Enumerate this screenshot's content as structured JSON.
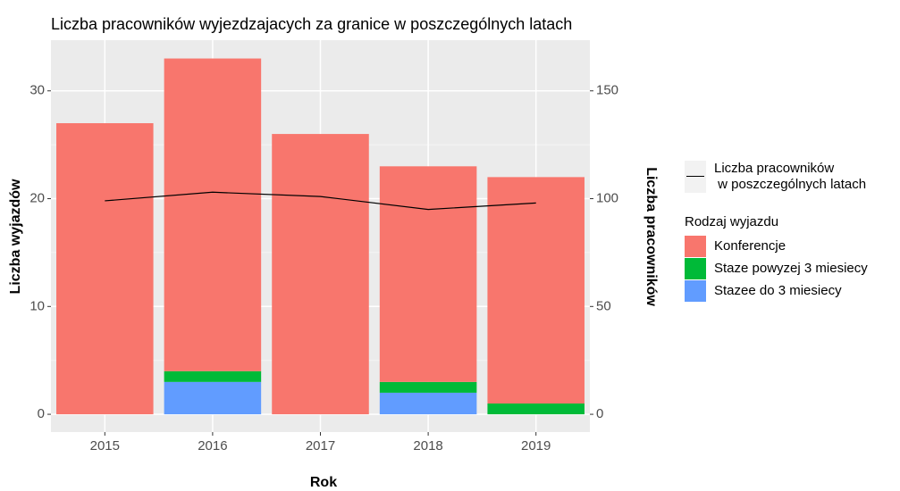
{
  "chart_data": {
    "type": "bar",
    "stacked": true,
    "grid": true,
    "title": "Liczba pracowników wyjezdzajacych za granice w poszczególnych latach",
    "x_label": "Rok",
    "y_label": "Liczba wyjazdów",
    "y2_label": "Liczba pracowników",
    "legend_title": "Rodzaj wyjazdu",
    "categories": [
      "2015",
      "2016",
      "2017",
      "2018",
      "2019"
    ],
    "series": [
      {
        "name": "Konferencje",
        "color": "#F8766D",
        "values": [
          27,
          29,
          26,
          20,
          21
        ]
      },
      {
        "name": "Staze powyzej 3 miesiecy",
        "color": "#00BA38",
        "values": [
          0,
          1,
          0,
          1,
          1
        ]
      },
      {
        "name": "Stazee do 3 miesiecy",
        "color": "#619CFF",
        "values": [
          0,
          3,
          0,
          2,
          0
        ]
      },
      {
        "name": "Liczba pracowników\n w poszczególnych latach",
        "type": "line",
        "axis": "y2",
        "color": "#000000",
        "values": [
          99,
          103,
          101,
          95,
          98
        ]
      }
    ],
    "ylim": [
      -1.65,
      34.7
    ],
    "yticks": [
      0,
      10,
      20,
      30
    ],
    "y2lim": [
      -8.25,
      173.5
    ],
    "y2ticks": [
      0,
      50,
      100,
      150
    ]
  }
}
